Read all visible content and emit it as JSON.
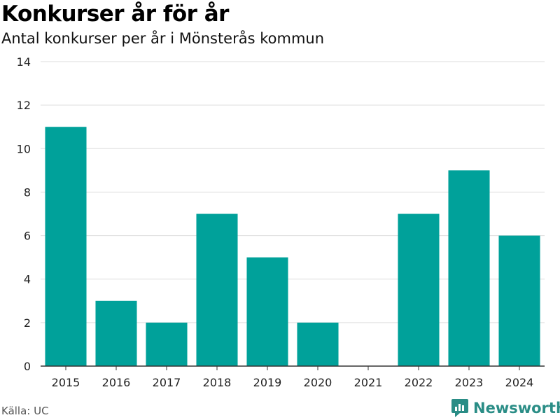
{
  "title": "Konkurser år för år",
  "subtitle": "Antal konkurser per år i Mönsterås kommun",
  "source": "Källa: UC",
  "brand": {
    "name": "Newsworthy",
    "icon": "newsworthy-logo-icon",
    "color": "#2a8d86"
  },
  "colors": {
    "bar": "#00a19a",
    "grid": "#dddddd",
    "axis": "#333333"
  },
  "chart_data": {
    "type": "bar",
    "categories": [
      "2015",
      "2016",
      "2017",
      "2018",
      "2019",
      "2020",
      "2021",
      "2022",
      "2023",
      "2024"
    ],
    "values": [
      11,
      3,
      2,
      7,
      5,
      2,
      0,
      7,
      9,
      6
    ],
    "title": "Konkurser år för år",
    "subtitle": "Antal konkurser per år i Mönsterås kommun",
    "xlabel": "",
    "ylabel": "",
    "ylim": [
      0,
      14
    ],
    "yticks": [
      0,
      2,
      4,
      6,
      8,
      10,
      12,
      14
    ],
    "grid": true,
    "legend": "none"
  }
}
